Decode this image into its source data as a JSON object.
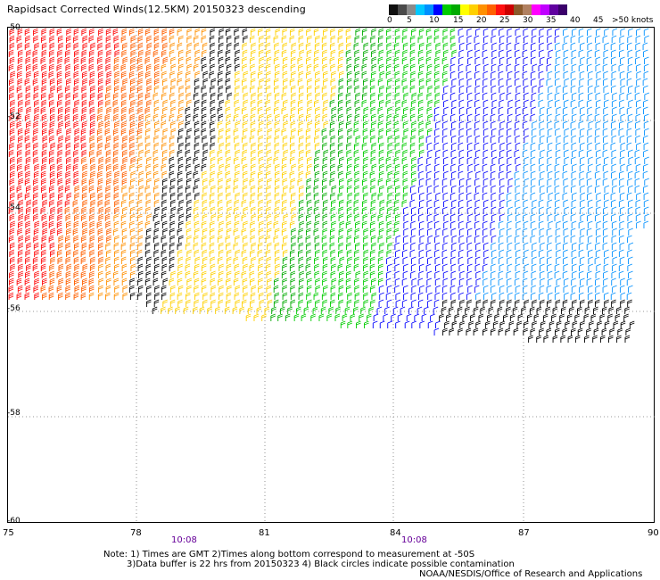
{
  "title": "Rapidsact Corrected Winds(12.5KM) 20150323 descending",
  "scale": {
    "labels": [
      "0",
      "5",
      "10",
      "15",
      "20",
      "25",
      "30",
      "35",
      "40",
      "45",
      ">50 knots"
    ],
    "colors": [
      "#101010",
      "#4a4a4a",
      "#8a8a8a",
      "#00c8ff",
      "#0090ff",
      "#0000ff",
      "#00cc00",
      "#00aa00",
      "#ffff00",
      "#ffd000",
      "#ff9000",
      "#ff6000",
      "#ff1010",
      "#cc0000",
      "#8b5a2b",
      "#b08060",
      "#ff00ff",
      "#c000ff",
      "#6000a0",
      "#3a006a"
    ]
  },
  "map": {
    "lat_labels": [
      "-50",
      "-52",
      "-54",
      "-56",
      "-58",
      "-60"
    ],
    "lon_labels": [
      "75",
      "78",
      "81",
      "84",
      "87",
      "90"
    ],
    "times": [
      "10:08",
      "10:08"
    ]
  },
  "notes": {
    "line1": "Note: 1) Times are GMT 2)Times along bottom correspond to measurement at -50S",
    "line2": "3)Data buffer is 22 hrs from 20150323 4) Black circles indicate possible contamination",
    "line3": "NOAA/NESDIS/Office of Research and Applications"
  }
}
